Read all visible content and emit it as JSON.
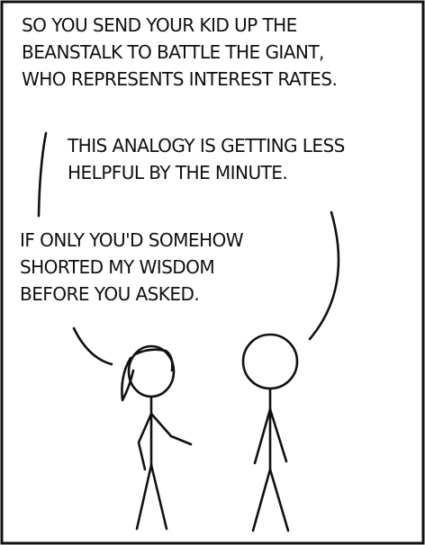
{
  "dialogue": [
    {
      "speaker": "left",
      "text": "SO YOU SEND YOUR KID UP THE\nBEANSTALK TO BATTLE THE GIANT,\nWHO REPRESENTS INTEREST RATES."
    },
    {
      "speaker": "right",
      "text": "THIS ANALOGY IS GETTING LESS\nHELPFUL BY THE MINUTE."
    },
    {
      "speaker": "left",
      "text": "IF ONLY YOU'D SOMEHOW\nSHORTED MY WISDOM\nBEFORE YOU ASKED."
    }
  ],
  "colors": {
    "ink": "#111111",
    "background": "#ffffff"
  }
}
